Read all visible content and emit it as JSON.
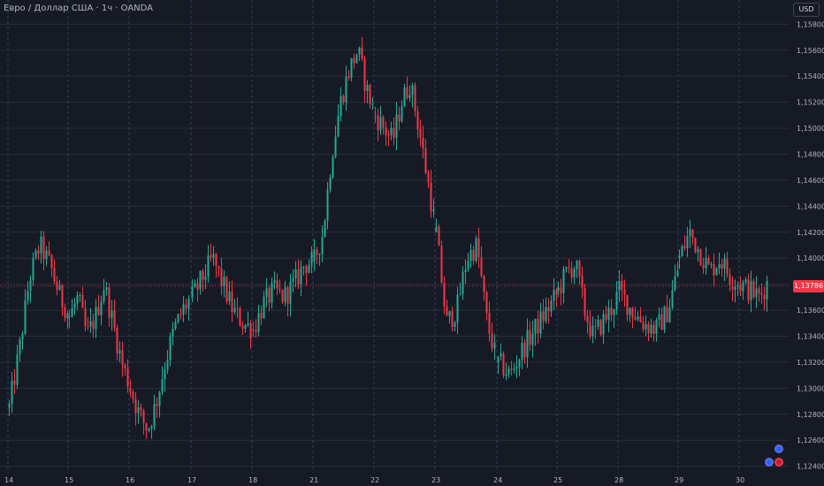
{
  "header": {
    "symbol_title": "Евро / Доллар США · 1ч · OANDA",
    "currency": "USD"
  },
  "last_price": "1,13786",
  "colors": {
    "background": "#161a25",
    "up": "#22ab94",
    "down": "#f23645",
    "grid": "#2a2e39",
    "session_line": "#2c3f6b",
    "price_line": "#f23645"
  },
  "chart_data": {
    "type": "candlestick",
    "y_axis_ticks": [
      "1,15800",
      "1,15600",
      "1,15400",
      "1,15200",
      "1,15000",
      "1,14800",
      "1,14600",
      "1,14400",
      "1,14200",
      "1,14000",
      "1,13800",
      "1,13600",
      "1,13400",
      "1,13200",
      "1,13000",
      "1,12800",
      "1,12600",
      "1,12400"
    ],
    "ylim": [
      1.1235,
      1.1585
    ],
    "x_axis_ticks": [
      "14",
      "15",
      "16",
      "17",
      "18",
      "21",
      "22",
      "23",
      "24",
      "25",
      "28",
      "29",
      "30"
    ],
    "last_price": 1.13786,
    "grid": true,
    "session_separators": true,
    "daily_path": [
      [
        "14",
        [
          1.1285,
          1.133,
          1.1385,
          1.141,
          1.1395,
          1.137,
          1.1355
        ]
      ],
      [
        "15",
        [
          1.1355,
          1.137,
          1.134,
          1.1355,
          1.138,
          1.135,
          1.132,
          1.13
        ]
      ],
      [
        "16",
        [
          1.13,
          1.128,
          1.1268,
          1.129,
          1.132,
          1.1345,
          1.136,
          1.137
        ]
      ],
      [
        "17",
        [
          1.137,
          1.1385,
          1.14,
          1.138,
          1.136,
          1.135,
          1.1345
        ]
      ],
      [
        "18",
        [
          1.1345,
          1.1365,
          1.1375,
          1.137,
          1.138,
          1.1395,
          1.1398
        ]
      ],
      [
        "21",
        [
          1.1398,
          1.142,
          1.148,
          1.152,
          1.1545,
          1.156,
          1.153,
          1.151
        ]
      ],
      [
        "22",
        [
          1.151,
          1.15,
          1.149,
          1.152,
          1.1535,
          1.15,
          1.146,
          1.142
        ]
      ],
      [
        "23",
        [
          1.142,
          1.135,
          1.136,
          1.14,
          1.141,
          1.135,
          1.132
        ]
      ],
      [
        "24",
        [
          1.132,
          1.131,
          1.133,
          1.1345,
          1.136,
          1.1375
        ]
      ],
      [
        "25",
        [
          1.1375,
          1.139,
          1.1395,
          1.136,
          1.134,
          1.135,
          1.136,
          1.1375
        ]
      ],
      [
        "28",
        [
          1.1375,
          1.136,
          1.135,
          1.1345,
          1.136,
          1.14
        ]
      ],
      [
        "29",
        [
          1.14,
          1.142,
          1.1405,
          1.139,
          1.14,
          1.1385,
          1.138
        ]
      ],
      [
        "30",
        [
          1.138,
          1.1375,
          1.137,
          1.1385
        ]
      ]
    ]
  }
}
